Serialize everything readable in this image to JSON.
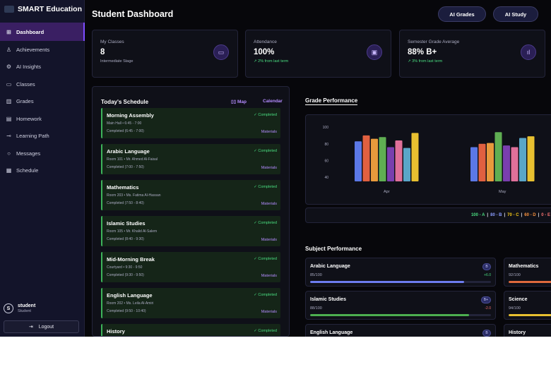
{
  "app": {
    "brand": "SMART Education",
    "logo_text": "SMART"
  },
  "sidebar": {
    "items": [
      {
        "label": "Dashboard",
        "icon": "dashboard-icon",
        "glyph": "⊞"
      },
      {
        "label": "Achievements",
        "icon": "medal-icon",
        "glyph": "♙"
      },
      {
        "label": "AI Insights",
        "icon": "brain-icon",
        "glyph": "⚙"
      },
      {
        "label": "Classes",
        "icon": "book-icon",
        "glyph": "▭"
      },
      {
        "label": "Grades",
        "icon": "bar-chart-icon",
        "glyph": "▥"
      },
      {
        "label": "Homework",
        "icon": "clipboard-icon",
        "glyph": "▤"
      },
      {
        "label": "Learning Path",
        "icon": "path-icon",
        "glyph": "⊸"
      },
      {
        "label": "Messages",
        "icon": "chat-icon",
        "glyph": "○"
      },
      {
        "label": "Schedule",
        "icon": "calendar-icon",
        "glyph": "▦"
      }
    ],
    "user": {
      "initial": "S",
      "name": "student",
      "role": "Student"
    },
    "logout_label": "Logout",
    "logout_glyph": "⇥"
  },
  "header": {
    "title": "Student Dashboard",
    "ai_grades": "AI Grades",
    "ai_study": "AI Study"
  },
  "stats": [
    {
      "label": "My Classes",
      "value": "8",
      "sub": "Intermediate Stage",
      "icon": "book-icon",
      "glyph": "▭"
    },
    {
      "label": "Attendance",
      "value": "100%",
      "sub": "↗ 2% from last term",
      "icon": "calendar-check-icon",
      "glyph": "▣"
    },
    {
      "label": "Semester Grade Average",
      "value": "88% B+",
      "sub": "↗ 3% from last term",
      "icon": "bar-chart-icon",
      "glyph": "ıl"
    }
  ],
  "schedule": {
    "title": "Today's Schedule",
    "map_label": "Map",
    "calendar_label": "Calendar",
    "items": [
      {
        "title": "Morning Assembly",
        "detail": "Main Hall • 6:45 - 7:00",
        "completed": "Completed (6:45 - 7:00)",
        "status": "✓ Completed",
        "materials": "Materials"
      },
      {
        "title": "Arabic Language",
        "detail": "Room 101 • Mr. Ahmed Al-Faisal",
        "completed": "Completed (7:00 - 7:50)",
        "status": "✓ Completed",
        "materials": "Materials"
      },
      {
        "title": "Mathematics",
        "detail": "Room 203 • Ms. Fatima Al-Hassan",
        "completed": "Completed (7:50 - 8:40)",
        "status": "✓ Completed",
        "materials": "Materials"
      },
      {
        "title": "Islamic Studies",
        "detail": "Room 105 • Mr. Khalid Al-Salem",
        "completed": "Completed (8:40 - 9:30)",
        "status": "✓ Completed",
        "materials": "Materials"
      },
      {
        "title": "Mid-Morning Break",
        "detail": "Courtyard • 9:30 - 9:50",
        "completed": "Completed (9:30 - 9:50)",
        "status": "✓ Completed",
        "materials": "Materials"
      },
      {
        "title": "English Language",
        "detail": "Room 202 • Ms. Leila Al-Amiri",
        "completed": "Completed (9:50 - 10:40)",
        "status": "✓ Completed",
        "materials": "Materials"
      },
      {
        "title": "History",
        "detail": "",
        "completed": "",
        "status": "✓ Completed",
        "materials": ""
      }
    ]
  },
  "grade_performance": {
    "title": "Grade Performance"
  },
  "chart_data": {
    "type": "bar",
    "categories": [
      "Apr",
      "May"
    ],
    "ylim": [
      35,
      106
    ],
    "yticks": [
      40,
      60,
      80,
      100
    ],
    "grid": false,
    "series": [
      {
        "color": "#5b78e6",
        "values": [
          83,
          76
        ]
      },
      {
        "color": "#e06040",
        "values": [
          90,
          80
        ]
      },
      {
        "color": "#e89a3c",
        "values": [
          86,
          81
        ]
      },
      {
        "color": "#5fae52",
        "values": [
          88,
          94
        ]
      },
      {
        "color": "#7a3fae",
        "values": [
          76,
          78
        ]
      },
      {
        "color": "#e0709a",
        "values": [
          84,
          76
        ]
      },
      {
        "color": "#5aa6c8",
        "values": [
          75,
          87
        ]
      },
      {
        "color": "#e8c030",
        "values": [
          93,
          89
        ]
      }
    ]
  },
  "legend": [
    {
      "range": "100",
      "grade": "A",
      "color": "#4ade80"
    },
    {
      "range": "80",
      "grade": "B",
      "color": "#8b9cff"
    },
    {
      "range": "70",
      "grade": "C",
      "color": "#facc15"
    },
    {
      "range": "60",
      "grade": "D",
      "color": "#fb923c"
    },
    {
      "range": "0",
      "grade": "E",
      "color": "#f87171"
    }
  ],
  "subject_performance": {
    "title": "Subject Performance",
    "items": [
      {
        "name": "Arabic Language",
        "score": "85/100",
        "badge": "B",
        "change": "+6.0",
        "change_color": "#4ade80",
        "fill": 0.85,
        "color": "#6d7cf0"
      },
      {
        "name": "Mathematics",
        "score": "92/100",
        "badge": "",
        "change": "",
        "change_color": "#4ade80",
        "fill": 0.92,
        "color": "#e06a3c"
      },
      {
        "name": "Islamic Studies",
        "score": "88/100",
        "badge": "B+",
        "change": "-2.0",
        "change_color": "#f87171",
        "fill": 0.88,
        "color": "#4caf50"
      },
      {
        "name": "Science",
        "score": "94/100",
        "badge": "",
        "change": "",
        "change_color": "#4ade80",
        "fill": 0.94,
        "color": "#e8c030"
      },
      {
        "name": "English Language",
        "score": "",
        "badge": "B",
        "change": "",
        "change_color": "#4ade80",
        "fill": 0,
        "color": "#6d7cf0"
      },
      {
        "name": "History",
        "score": "",
        "badge": "",
        "change": "",
        "change_color": "#4ade80",
        "fill": 0,
        "color": "#6d7cf0"
      }
    ]
  },
  "colors": {
    "accent": "#7c4dff",
    "success": "#4ade80",
    "link": "#b48cff"
  }
}
